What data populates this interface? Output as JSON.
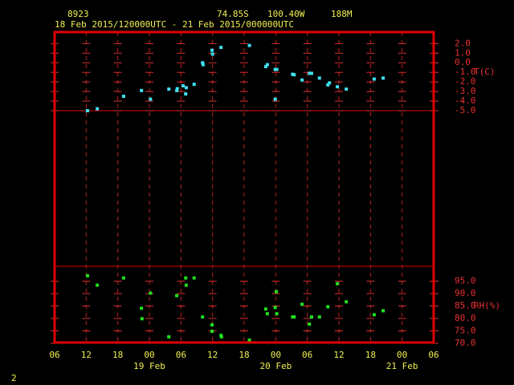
{
  "header": {
    "station": "8923",
    "lat": "74.85S",
    "lon": "100.40W",
    "elev": "188M",
    "period": "18 Feb 2015/120000UTC - 21 Feb 2015/000000UTC",
    "page": "2"
  },
  "chart_data": [
    {
      "type": "scatter",
      "ylabel": "T(C)",
      "color": "#40e0f0",
      "xlim": [
        6,
        78
      ],
      "ylim": [
        -5,
        3.2
      ],
      "yticks": [
        {
          "value": 2,
          "label": "2.0"
        },
        {
          "value": 1,
          "label": "1.0"
        },
        {
          "value": 0,
          "label": "0.0"
        },
        {
          "value": -1,
          "label": "-1.0"
        },
        {
          "value": -2,
          "label": "-2.0"
        },
        {
          "value": -3,
          "label": "-3.0"
        },
        {
          "value": -4,
          "label": "-4.0"
        },
        {
          "value": -5,
          "label": "-5.0"
        }
      ],
      "x": [
        12.25,
        14.1,
        19.1,
        22.5,
        24.2,
        27.7,
        29.2,
        29.3,
        30.4,
        30.9,
        31.0,
        32.5,
        34.1,
        34.2,
        35.9,
        36.0,
        37.6,
        43.0,
        46.1,
        46.4,
        47.9,
        48.2,
        47.9,
        51.2,
        51.5,
        53.0,
        54.4,
        54.8,
        56.3,
        57.9,
        58.2,
        59.7,
        61.4,
        66.7,
        68.4
      ],
      "values": [
        -5.0,
        -4.8,
        -3.5,
        -2.9,
        -3.8,
        -2.75,
        -2.9,
        -2.7,
        -2.4,
        -3.25,
        -2.6,
        -2.25,
        0,
        -0.2,
        1.3,
        0.9,
        1.6,
        1.8,
        -0.4,
        -0.2,
        -0.7,
        -0.7,
        -3.8,
        -1.2,
        -1.25,
        -1.8,
        -1.1,
        -1.1,
        -1.6,
        -2.3,
        -2.1,
        -2.5,
        -2.75,
        -1.7,
        -1.6
      ]
    },
    {
      "type": "scatter",
      "ylabel": "RH(%)",
      "color": "#20e020",
      "xlim": [
        6,
        78
      ],
      "ylim": [
        70,
        101
      ],
      "xticks": [
        {
          "value": 6,
          "label": "06"
        },
        {
          "value": 12,
          "label": "12"
        },
        {
          "value": 18,
          "label": "18"
        },
        {
          "value": 24,
          "label": "00"
        },
        {
          "value": 30,
          "label": "06"
        },
        {
          "value": 36,
          "label": "12"
        },
        {
          "value": 42,
          "label": "18"
        },
        {
          "value": 48,
          "label": "00"
        },
        {
          "value": 54,
          "label": "06"
        },
        {
          "value": 60,
          "label": "12"
        },
        {
          "value": 66,
          "label": "18"
        },
        {
          "value": 72,
          "label": "00"
        },
        {
          "value": 78,
          "label": "06"
        }
      ],
      "day_labels": [
        {
          "value": 24,
          "label": "19 Feb"
        },
        {
          "value": 48,
          "label": "20 Feb"
        },
        {
          "value": 72,
          "label": "21 Feb"
        }
      ],
      "yticks": [
        {
          "value": 95,
          "label": "95.0"
        },
        {
          "value": 90,
          "label": "90.0"
        },
        {
          "value": 85,
          "label": "85.0"
        },
        {
          "value": 80,
          "label": "80.0"
        },
        {
          "value": 75,
          "label": "75.0"
        },
        {
          "value": 70,
          "label": "70.0"
        }
      ],
      "x": [
        12.25,
        14.1,
        19.1,
        22.5,
        22.6,
        24.2,
        27.7,
        29.2,
        30.9,
        31.0,
        32.5,
        34.1,
        35.9,
        35.9,
        37.6,
        37.7,
        43.0,
        46.1,
        46.4,
        47.9,
        48.1,
        48.2,
        51.2,
        51.5,
        53.0,
        54.4,
        54.8,
        56.3,
        57.9,
        59.7,
        61.4,
        66.7,
        68.4
      ],
      "values": [
        97.2,
        93.4,
        96.3,
        84.1,
        79.9,
        90.2,
        72.6,
        89.2,
        96.3,
        93.4,
        96.3,
        80.6,
        77.4,
        74.8,
        73.2,
        72.6,
        71.3,
        83.8,
        81.9,
        84.4,
        90.8,
        81.9,
        80.6,
        80.6,
        85.7,
        77.7,
        80.6,
        80.6,
        84.7,
        94.0,
        86.7,
        81.5,
        83.1
      ]
    }
  ]
}
